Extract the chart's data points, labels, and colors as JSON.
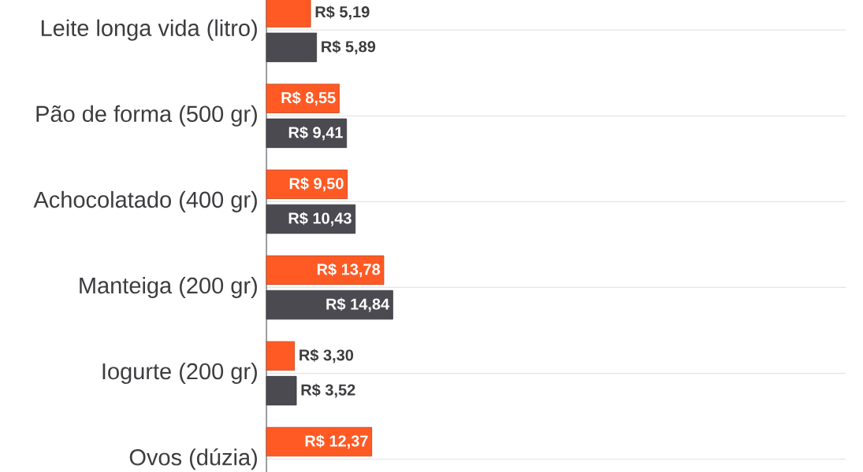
{
  "chart_data": {
    "type": "bar",
    "orientation": "horizontal",
    "categories": [
      "Leite longa vida (litro)",
      "Pão de forma (500 gr)",
      "Achocolatado (400 gr)",
      "Manteiga (200 gr)",
      "Iogurte (200 gr)",
      "Ovos (dúzia)"
    ],
    "series": [
      {
        "color": "#ff5a24",
        "values": [
          5.19,
          8.55,
          9.5,
          13.78,
          3.3,
          12.37
        ],
        "value_labels": [
          "R$ 5,19",
          "R$ 8,55",
          "R$ 9,50",
          "R$ 13,78",
          "R$ 3,30",
          "R$ 12,37"
        ]
      },
      {
        "color": "#4b4a51",
        "values": [
          5.89,
          9.41,
          10.43,
          14.84,
          3.52,
          null
        ],
        "value_labels": [
          "R$ 5,89",
          "R$ 9,41",
          "R$ 10,43",
          "R$ 14,84",
          "R$ 3,52",
          null
        ]
      }
    ],
    "xlim": [
      0,
      68
    ],
    "grid": "y",
    "tick_labels": "y"
  }
}
